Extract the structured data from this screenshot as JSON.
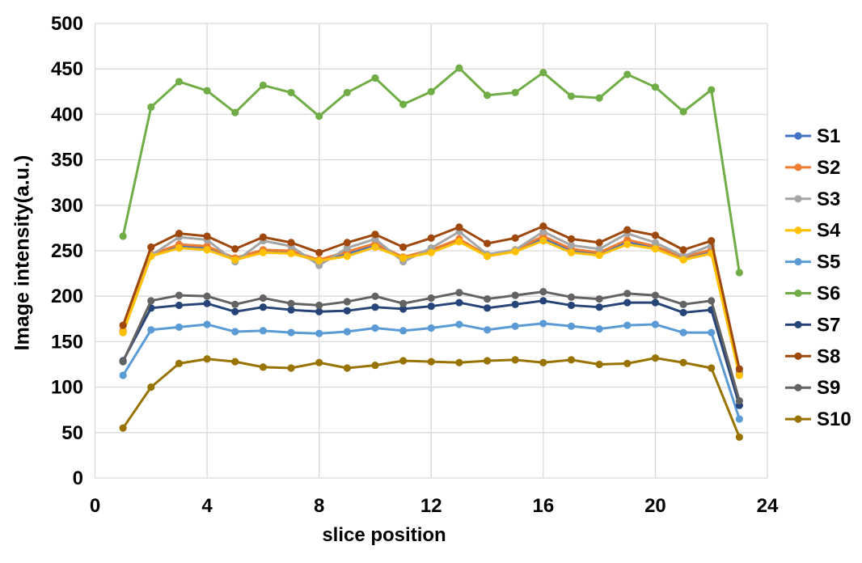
{
  "chart_data": {
    "type": "line",
    "title": "",
    "xlabel": "slice position",
    "ylabel": "Image intensity(a.u.)",
    "x": [
      1,
      2,
      3,
      4,
      5,
      6,
      7,
      8,
      9,
      10,
      11,
      12,
      13,
      14,
      15,
      16,
      17,
      18,
      19,
      20,
      21,
      22,
      23
    ],
    "xlim": [
      0,
      24
    ],
    "ylim": [
      0,
      500
    ],
    "xticks": [
      0,
      4,
      8,
      12,
      16,
      20,
      24
    ],
    "yticks": [
      0,
      50,
      100,
      150,
      200,
      250,
      300,
      350,
      400,
      450,
      500
    ],
    "grid": true,
    "legend_position": "right",
    "marker": "circle",
    "series": [
      {
        "name": "S1",
        "color": "#4472C4",
        "values": [
          161,
          245,
          255,
          253,
          241,
          250,
          248,
          238,
          247,
          256,
          242,
          250,
          261,
          244,
          250,
          263,
          250,
          246,
          260,
          253,
          241,
          249,
          115
        ]
      },
      {
        "name": "S2",
        "color": "#ED7D31",
        "values": [
          162,
          246,
          257,
          255,
          242,
          251,
          250,
          240,
          249,
          258,
          243,
          251,
          263,
          245,
          251,
          266,
          252,
          248,
          262,
          255,
          243,
          251,
          116
        ]
      },
      {
        "name": "S3",
        "color": "#A5A5A5",
        "values": [
          160,
          245,
          265,
          262,
          238,
          261,
          255,
          234,
          253,
          263,
          238,
          253,
          271,
          246,
          251,
          271,
          256,
          252,
          269,
          259,
          244,
          256,
          117
        ]
      },
      {
        "name": "S4",
        "color": "#FFC000",
        "values": [
          160,
          244,
          253,
          251,
          240,
          248,
          247,
          239,
          244,
          254,
          242,
          248,
          260,
          244,
          249,
          261,
          248,
          245,
          257,
          252,
          240,
          247,
          113
        ]
      },
      {
        "name": "S5",
        "color": "#5B9BD5",
        "values": [
          113,
          163,
          166,
          169,
          161,
          162,
          160,
          159,
          161,
          165,
          162,
          165,
          169,
          163,
          167,
          170,
          167,
          164,
          168,
          169,
          160,
          160,
          65
        ]
      },
      {
        "name": "S6",
        "color": "#70AD47",
        "values": [
          266,
          408,
          436,
          426,
          402,
          432,
          424,
          398,
          424,
          440,
          411,
          425,
          451,
          421,
          424,
          446,
          420,
          418,
          444,
          430,
          403,
          427,
          226
        ]
      },
      {
        "name": "S7",
        "color": "#264478",
        "values": [
          129,
          187,
          190,
          192,
          183,
          188,
          185,
          183,
          184,
          188,
          186,
          189,
          193,
          187,
          191,
          195,
          190,
          188,
          193,
          193,
          182,
          185,
          80
        ]
      },
      {
        "name": "S8",
        "color": "#9E480E",
        "values": [
          168,
          254,
          269,
          266,
          252,
          265,
          259,
          248,
          259,
          268,
          254,
          264,
          276,
          258,
          264,
          277,
          263,
          259,
          273,
          267,
          251,
          261,
          120
        ]
      },
      {
        "name": "S9",
        "color": "#636363",
        "values": [
          128,
          195,
          201,
          200,
          191,
          198,
          192,
          190,
          194,
          200,
          192,
          198,
          204,
          197,
          201,
          205,
          199,
          197,
          203,
          201,
          191,
          195,
          85
        ]
      },
      {
        "name": "S10",
        "color": "#997300",
        "values": [
          55,
          100,
          126,
          131,
          128,
          122,
          121,
          127,
          121,
          124,
          129,
          128,
          127,
          129,
          130,
          127,
          130,
          125,
          126,
          132,
          127,
          121,
          45
        ]
      }
    ]
  },
  "colors": {
    "gridline": "#D9D9D9",
    "plot_border": "#D9D9D9",
    "text": "#000000",
    "background": "#FFFFFF"
  }
}
